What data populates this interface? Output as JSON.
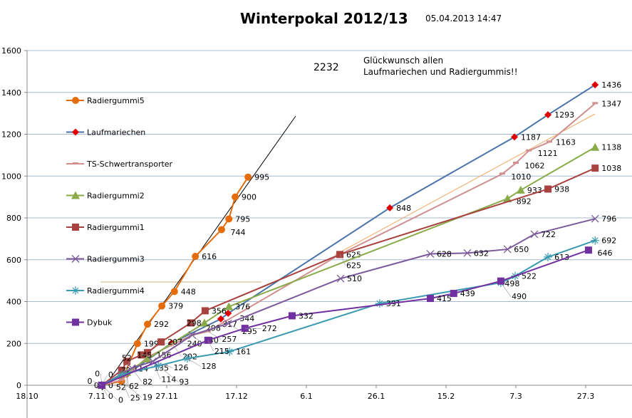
{
  "chart_data": {
    "type": "line",
    "title": "Winterpokal 2012/13",
    "timestamp": "05.04.2013 14:47",
    "total": "2232",
    "message": [
      "Glückwunsch allen",
      "Laufmariechen und Radiergummis!!"
    ],
    "x_unit": "days since 18.10.2012",
    "xlim": [
      0,
      168
    ],
    "ylim": [
      0,
      1600
    ],
    "yticks": [
      0,
      200,
      400,
      600,
      800,
      1000,
      1200,
      1400,
      1600
    ],
    "xticks": [
      {
        "day": 0,
        "label": "18.10"
      },
      {
        "day": 20,
        "label": "7.11"
      },
      {
        "day": 40,
        "label": "27.11"
      },
      {
        "day": 60,
        "label": "17.12"
      },
      {
        "day": 80,
        "label": "6.1"
      },
      {
        "day": 100,
        "label": "26.1"
      },
      {
        "day": 120,
        "label": "15.2"
      },
      {
        "day": 140,
        "label": "7.3"
      },
      {
        "day": 160,
        "label": "27.3"
      }
    ],
    "legend_position": "left",
    "series": [
      {
        "name": "Radiergummi5",
        "color": "#e46c0a",
        "marker": "circle",
        "points": [
          [
            21.4,
            0
          ],
          [
            27.1,
            19
          ],
          [
            31.6,
            199
          ],
          [
            34.5,
            292
          ],
          [
            38.6,
            379
          ],
          [
            42.2,
            448
          ],
          [
            48.2,
            616
          ],
          [
            55.7,
            744
          ],
          [
            57.8,
            795
          ],
          [
            59.6,
            900
          ],
          [
            63.3,
            995
          ]
        ]
      },
      {
        "name": "Laufmariechen",
        "color": "#4a74a8",
        "marker": "diamond",
        "markerColor": "#e00000",
        "points": [
          [
            21.4,
            0
          ],
          [
            28.6,
            52
          ],
          [
            41.4,
            202
          ],
          [
            55.5,
            317
          ],
          [
            57.6,
            344
          ],
          [
            103.9,
            848
          ],
          [
            139.6,
            1187
          ],
          [
            149.2,
            1293
          ],
          [
            162.7,
            1436
          ]
        ]
      },
      {
        "name": "TS-Schwertransporter",
        "color": "#d09090",
        "marker": "dash",
        "points": [
          [
            21.4,
            0
          ],
          [
            27.1,
            25
          ],
          [
            34.5,
            135
          ],
          [
            47.3,
            240
          ],
          [
            51.8,
            257
          ],
          [
            89.6,
            625
          ],
          [
            136.1,
            1010
          ],
          [
            140,
            1062
          ],
          [
            143.7,
            1121
          ],
          [
            149.6,
            1163
          ],
          [
            162.7,
            1347
          ]
        ]
      },
      {
        "name": "Radiergummi2",
        "color": "#8aab4a",
        "marker": "triangle",
        "points": [
          [
            21.4,
            0
          ],
          [
            28.6,
            62
          ],
          [
            34.5,
            126
          ],
          [
            50.8,
            298
          ],
          [
            57.8,
            376
          ],
          [
            137.6,
            892
          ],
          [
            141.4,
            933
          ],
          [
            162.7,
            1138
          ]
        ]
      },
      {
        "name": "Radiergummi1",
        "color": "#a8423e",
        "marker": "square",
        "points": [
          [
            21.4,
            0
          ],
          [
            27.1,
            72
          ],
          [
            28.6,
            114
          ],
          [
            32.7,
            145
          ],
          [
            34.5,
            156
          ],
          [
            38.4,
            207
          ],
          [
            46.9,
            298
          ],
          [
            51,
            356
          ],
          [
            89.6,
            625
          ],
          [
            149.2,
            938
          ],
          [
            162.7,
            1038
          ]
        ]
      },
      {
        "name": "Radiergummi3",
        "color": "#7a5a9a",
        "marker": "x",
        "points": [
          [
            21.4,
            0
          ],
          [
            30,
            82
          ],
          [
            36,
            114
          ],
          [
            47.3,
            240
          ],
          [
            57.6,
            295
          ],
          [
            89.8,
            510
          ],
          [
            115.5,
            628
          ],
          [
            126.1,
            632
          ],
          [
            137.6,
            650
          ],
          [
            145.3,
            722
          ],
          [
            162.7,
            796
          ]
        ]
      },
      {
        "name": "Radiergummi4",
        "color": "#3a9ab0",
        "marker": "star",
        "points": [
          [
            21.4,
            0
          ],
          [
            27.1,
            52
          ],
          [
            37.6,
            93
          ],
          [
            45.9,
            128
          ],
          [
            58,
            161
          ],
          [
            101,
            391
          ],
          [
            135.7,
            490
          ],
          [
            139.8,
            522
          ],
          [
            149.2,
            613
          ],
          [
            162.7,
            692
          ]
        ]
      },
      {
        "name": "Dybuk",
        "color": "#7030a0",
        "marker": "square",
        "points": [
          [
            21.4,
            0
          ],
          [
            51.8,
            215
          ],
          [
            62.4,
            272
          ],
          [
            75.9,
            332
          ],
          [
            115.5,
            415
          ],
          [
            122.2,
            439
          ],
          [
            135.7,
            498
          ],
          [
            160.8,
            646
          ]
        ]
      }
    ]
  }
}
